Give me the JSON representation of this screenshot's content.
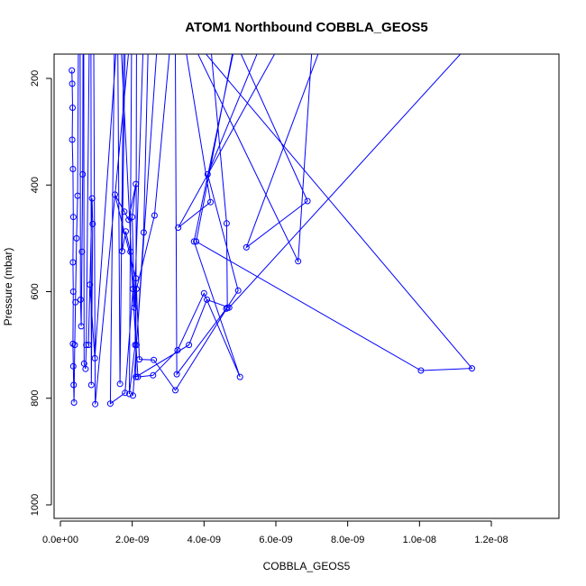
{
  "chart_data": {
    "type": "scatter",
    "title": "ATOM1 Northbound COBBLA_GEOS5",
    "xlabel": "COBBLA_GEOS5",
    "ylabel": "Pressure (mbar)",
    "xlim": [
      0,
      1.38e-08
    ],
    "ylim": [
      1025,
      160
    ],
    "y_reversed": true,
    "connected_points": true,
    "grid": false,
    "legend": "none",
    "x_ticks": [
      0,
      2e-09,
      4e-09,
      6e-09,
      8e-09,
      1e-08,
      1.2e-08
    ],
    "x_tick_labels": [
      "0.0e+00",
      "2.0e-09",
      "4.0e-09",
      "6.0e-09",
      "8.0e-09",
      "1.0e-08",
      "1.2e-08"
    ],
    "y_ticks": [
      200,
      400,
      600,
      800,
      1000
    ],
    "y_tick_labels": [
      "200",
      "400",
      "600",
      "800",
      "1000"
    ],
    "colors": {
      "series": "#0000ff",
      "axis": "#000000"
    },
    "series": [
      {
        "points": [
          [
            3.2e-10,
            185
          ],
          [
            3.3e-10,
            210
          ],
          [
            3.4e-10,
            255
          ],
          [
            3.3e-10,
            315
          ],
          [
            3.5e-10,
            370
          ],
          [
            3.6e-10,
            460
          ],
          [
            3.5e-10,
            545
          ],
          [
            3.6e-10,
            600
          ],
          [
            3.5e-10,
            698
          ],
          [
            3.6e-10,
            740
          ],
          [
            3.7e-10,
            775
          ],
          [
            3.8e-10,
            808
          ],
          [
            4e-10,
            700
          ],
          [
            4.2e-10,
            620
          ],
          [
            4.5e-10,
            500
          ],
          [
            4.8e-10,
            420
          ],
          [
            5e-10,
            150
          ],
          [
            5.5e-10,
            150
          ],
          [
            5.6e-10,
            615
          ],
          [
            5.8e-10,
            665
          ],
          [
            6e-10,
            525
          ],
          [
            6.2e-10,
            380
          ],
          [
            6.3e-10,
            150
          ],
          [
            6.5e-10,
            150
          ],
          [
            6.6e-10,
            735
          ],
          [
            7e-10,
            745
          ],
          [
            7.2e-10,
            700
          ],
          [
            8e-10,
            150
          ],
          [
            8.5e-10,
            150
          ],
          [
            8.6e-10,
            775
          ],
          [
            9e-10,
            473
          ],
          [
            8.8e-10,
            425
          ],
          [
            7.8e-10,
            700
          ],
          [
            8.2e-10,
            587
          ],
          [
            9.6e-10,
            725
          ],
          [
            1.55e-09,
            150
          ],
          [
            1.9e-09,
            150
          ],
          [
            9.7e-10,
            811
          ],
          [
            9.3e-10,
            150
          ],
          [
            1.5e-09,
            150
          ],
          [
            1.39e-09,
            810
          ],
          [
            1.8e-09,
            790
          ],
          [
            2.02e-09,
            595
          ],
          [
            1.7e-09,
            150
          ],
          [
            1.6e-09,
            150
          ],
          [
            1.66e-09,
            773
          ],
          [
            1.76e-09,
            150
          ],
          [
            1.8e-09,
            150
          ],
          [
            1.72e-09,
            524
          ],
          [
            1.82e-09,
            487
          ],
          [
            1.95e-09,
            525
          ],
          [
            2.16e-09,
            760
          ],
          [
            2.58e-09,
            757
          ],
          [
            3.26e-09,
            710
          ],
          [
            4e-09,
            603
          ],
          [
            5e-09,
            760
          ],
          [
            3.72e-09,
            506
          ],
          [
            4.82e-09,
            150
          ],
          [
            2.68e-09,
            150
          ],
          [
            2.02e-09,
            795
          ],
          [
            2.12e-09,
            700
          ],
          [
            2.32e-09,
            489
          ],
          [
            2.44e-09,
            150
          ],
          [
            3.04e-09,
            150
          ],
          [
            2.62e-09,
            457
          ],
          [
            2.12e-09,
            595
          ],
          [
            2.2e-09,
            727
          ],
          [
            2.6e-09,
            728
          ],
          [
            3.2e-09,
            785
          ],
          [
            4.65e-09,
            630
          ],
          [
            4.63e-09,
            472
          ],
          [
            4.2e-09,
            150
          ],
          [
            3.2e-09,
            150
          ],
          [
            3.24e-09,
            755
          ],
          [
            4.62e-09,
            632
          ],
          [
            4.95e-09,
            598
          ],
          [
            4.1e-09,
            380
          ],
          [
            5.5e-09,
            150
          ],
          [
            6e-09,
            150
          ],
          [
            3.28e-09,
            480
          ],
          [
            4.18e-09,
            432
          ],
          [
            3.5e-09,
            150
          ],
          [
            3.8e-09,
            150
          ],
          [
            6.62e-09,
            543
          ],
          [
            7e-09,
            150
          ],
          [
            7.2e-09,
            150
          ],
          [
            5.18e-09,
            517
          ],
          [
            6.88e-09,
            430
          ],
          [
            5e-09,
            150
          ],
          [
            4e-09,
            150
          ],
          [
            1.146e-08,
            744
          ],
          [
            1.004e-08,
            748
          ],
          [
            3.78e-09,
            506
          ],
          [
            4.8e-09,
            150
          ],
          [
            1.12e-08,
            150
          ],
          [
            4.7e-09,
            630
          ],
          [
            4.08e-09,
            615
          ],
          [
            3.58e-09,
            700
          ],
          [
            2.1e-09,
            760
          ],
          [
            2.12e-09,
            150
          ],
          [
            1.98e-09,
            150
          ],
          [
            1.92e-09,
            792
          ],
          [
            2.08e-09,
            700
          ],
          [
            2.1e-09,
            575
          ],
          [
            1.52e-09,
            418
          ],
          [
            1.78e-09,
            450
          ],
          [
            1.9e-09,
            465
          ],
          [
            2.1e-09,
            398
          ],
          [
            2e-09,
            460
          ],
          [
            2.06e-09,
            630
          ],
          [
            2.3e-09,
            150
          ]
        ]
      }
    ]
  }
}
